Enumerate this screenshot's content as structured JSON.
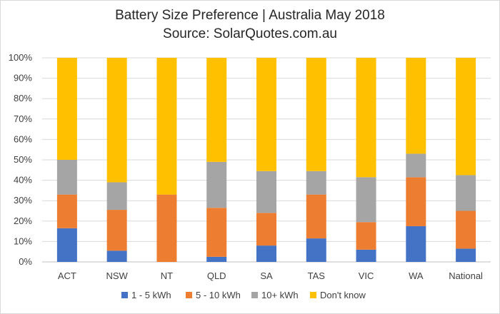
{
  "chart_data": {
    "type": "bar",
    "stacked": true,
    "percent": true,
    "title": "Battery Size Preference  | Australia May 2018",
    "subtitle": "Source: SolarQuotes.com.au",
    "categories": [
      "ACT",
      "NSW",
      "NT",
      "QLD",
      "SA",
      "TAS",
      "VIC",
      "WA",
      "National"
    ],
    "series": [
      {
        "name": "1 - 5 kWh",
        "color": "#4472c4",
        "values": [
          16.5,
          5.5,
          0,
          2.5,
          8,
          11.5,
          6,
          17.5,
          6.5
        ]
      },
      {
        "name": "5 - 10 kWh",
        "color": "#ed7d31",
        "values": [
          16.5,
          20,
          33,
          24,
          16,
          21.5,
          13.5,
          24,
          18.5
        ]
      },
      {
        "name": "10+ kWh",
        "color": "#a5a5a5",
        "values": [
          17,
          13.5,
          0,
          22.5,
          20.5,
          11.5,
          22,
          11.5,
          17.5
        ]
      },
      {
        "name": "Don't know",
        "color": "#ffc000",
        "values": [
          50,
          61,
          67,
          51,
          55.5,
          55.5,
          58.5,
          47,
          57.5
        ]
      }
    ],
    "ylim": [
      0,
      100
    ],
    "yticks": [
      "0%",
      "10%",
      "20%",
      "30%",
      "40%",
      "50%",
      "60%",
      "70%",
      "80%",
      "90%",
      "100%"
    ],
    "grid": true,
    "legend_position": "bottom"
  }
}
